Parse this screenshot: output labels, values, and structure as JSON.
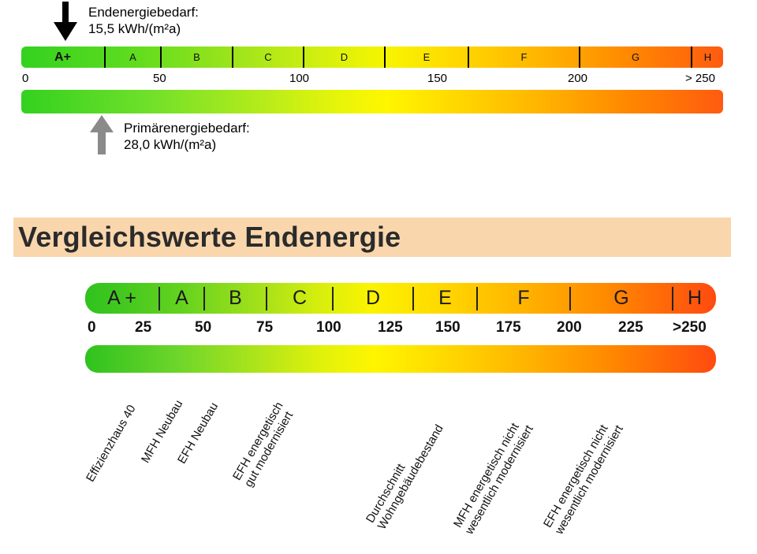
{
  "top_scale": {
    "end_energy": {
      "title": "Endenergiebedarf:",
      "value": "15,5 kWh/(m²a)",
      "arrow": "black-down-arrow-icon",
      "color": "#000000"
    },
    "primary_energy": {
      "title": "Primärenergiebedarf:",
      "value": "28,0 kWh/(m²a)",
      "arrow": "gray-up-arrow-icon",
      "color": "#888888"
    },
    "classes": [
      "A+",
      "A",
      "B",
      "C",
      "D",
      "E",
      "F",
      "G",
      "H"
    ],
    "ticks": [
      "0",
      "50",
      "100",
      "150",
      "200",
      "> 250"
    ]
  },
  "comparison": {
    "title": "Vergleichswerte Endenergie",
    "header_color": "#fad6ad",
    "classes": [
      "A +",
      "A",
      "B",
      "C",
      "D",
      "E",
      "F",
      "G",
      "H"
    ],
    "ticks": [
      "0",
      "25",
      "50",
      "75",
      "100",
      "125",
      "150",
      "175",
      "200",
      "225",
      ">250"
    ],
    "references": [
      {
        "lines": [
          "Effizienzhaus 40"
        ]
      },
      {
        "lines": [
          "MFH Neubau"
        ]
      },
      {
        "lines": [
          "EFH Neubau"
        ]
      },
      {
        "lines": [
          "EFH energetisch",
          "gut modernisiert"
        ]
      },
      {
        "lines": [
          "Durchschnitt",
          "Wohngebäudebestand"
        ]
      },
      {
        "lines": [
          "MFH energetisch nicht",
          "wesentlich modernisiert"
        ]
      },
      {
        "lines": [
          "EFH energetisch nicht",
          "wesentlich modernisiert"
        ]
      }
    ]
  }
}
